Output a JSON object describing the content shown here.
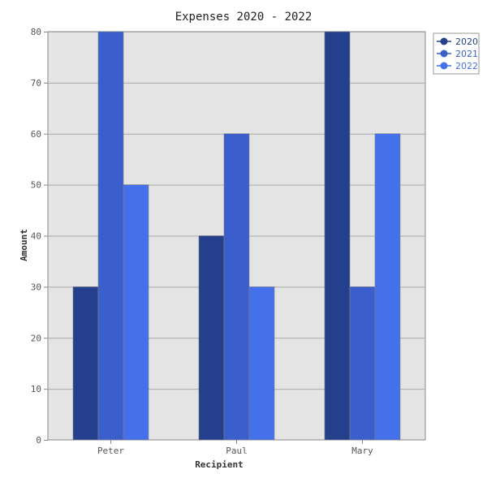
{
  "chart_data": {
    "type": "bar",
    "title": "Expenses 2020 - 2022",
    "xlabel": "Recipient",
    "ylabel": "Amount",
    "categories": [
      "Peter",
      "Paul",
      "Mary"
    ],
    "series": [
      {
        "name": "2020",
        "values": [
          30,
          40,
          80
        ],
        "color": "#243f8c"
      },
      {
        "name": "2021",
        "values": [
          80,
          60,
          30
        ],
        "color": "#3a5fcd"
      },
      {
        "name": "2022",
        "values": [
          50,
          30,
          60
        ],
        "color": "#4570ec"
      }
    ],
    "ylim": [
      0,
      80
    ],
    "yticks": [
      0,
      10,
      20,
      30,
      40,
      50,
      60,
      70,
      80
    ],
    "grid": true,
    "legend": "top-right",
    "colors": {
      "plot_background": "#e4e4e4",
      "grid": "#aaaaaa",
      "axis": "#888888"
    }
  }
}
